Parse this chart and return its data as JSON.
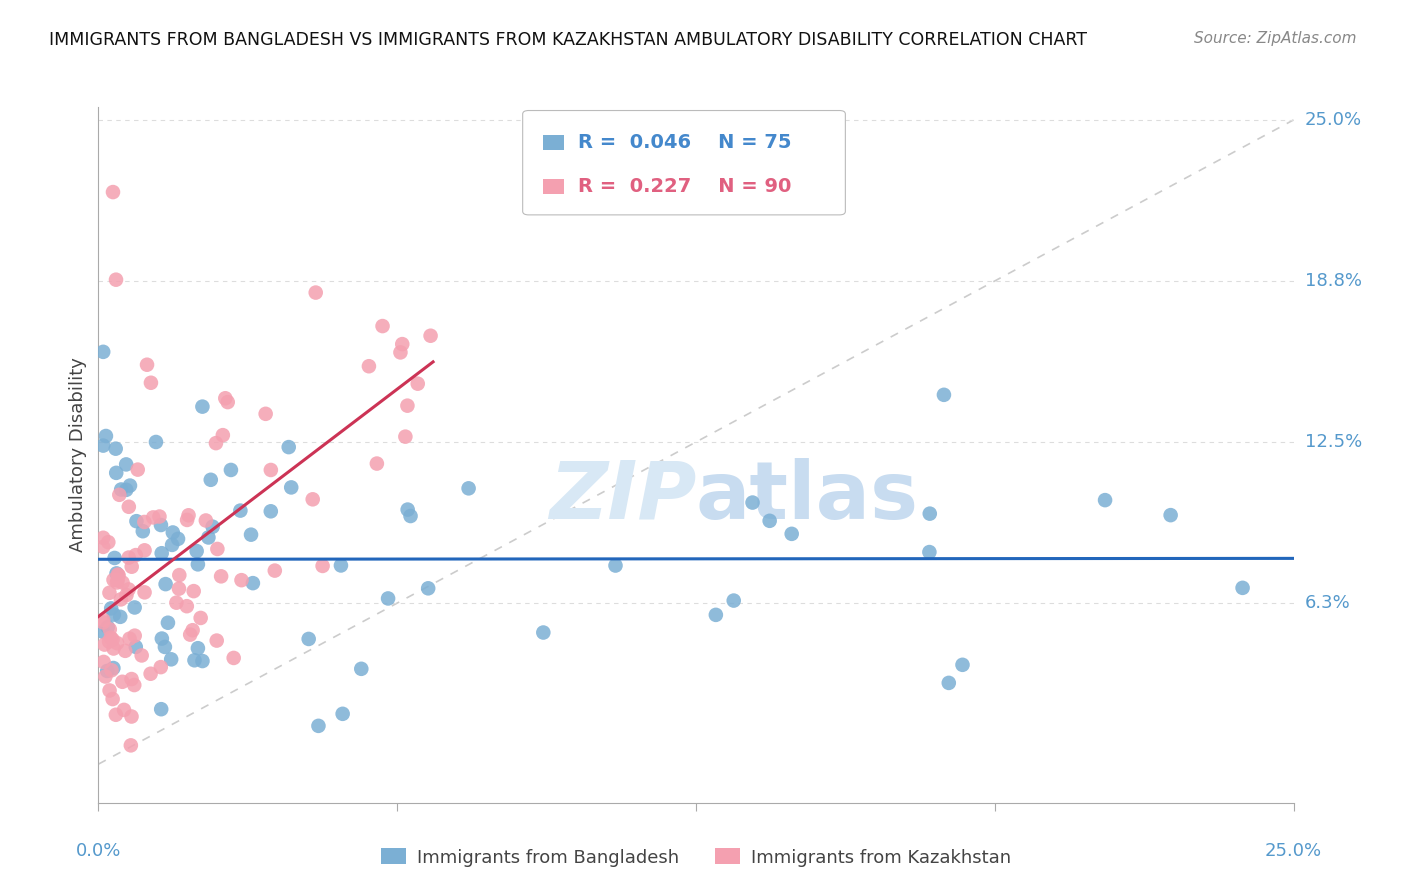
{
  "title": "IMMIGRANTS FROM BANGLADESH VS IMMIGRANTS FROM KAZAKHSTAN AMBULATORY DISABILITY CORRELATION CHART",
  "source": "Source: ZipAtlas.com",
  "ylabel": "Ambulatory Disability",
  "label_blue": "Immigrants from Bangladesh",
  "label_pink": "Immigrants from Kazakhstan",
  "legend_r_blue": "0.046",
  "legend_n_blue": "75",
  "legend_r_pink": "0.227",
  "legend_n_pink": "90",
  "color_blue": "#7BAFD4",
  "color_pink": "#F4A0B0",
  "color_blue_text": "#4488CC",
  "color_pink_text": "#E06080",
  "trend_blue": "#2266BB",
  "trend_pink": "#CC3355",
  "diagonal_color": "#CCCCCC",
  "grid_color": "#DDDDDD",
  "right_label_color": "#5599CC",
  "xlim": [
    0.0,
    0.25
  ],
  "ylim": [
    0.0,
    0.25
  ],
  "ytick_vals": [
    0.0625,
    0.125,
    0.1875,
    0.25
  ],
  "ytick_labels": [
    "6.3%",
    "12.5%",
    "18.8%",
    "25.0%"
  ],
  "xtick_vals": [
    0.0,
    0.0625,
    0.125,
    0.1875,
    0.25
  ],
  "bangladesh_seed": 101,
  "kazakhstan_seed": 202
}
